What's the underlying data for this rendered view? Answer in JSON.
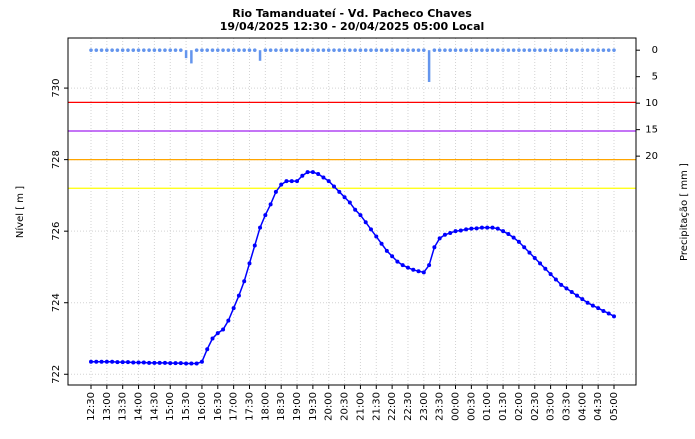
{
  "chart_data": {
    "type": "line",
    "title": "Rio Tamanduateí - Vd. Pacheco Chaves",
    "subtitle": "19/04/2025 12:30  -  20/04/2025 05:00  Local",
    "y_label": "Nível [ m ]",
    "y2_label": "Precipitação [ mm ]",
    "categories": [
      "12:30",
      null,
      null,
      "13:00",
      null,
      null,
      "13:30",
      null,
      null,
      "14:00",
      null,
      null,
      "14:30",
      null,
      null,
      "15:00",
      null,
      null,
      "15:30",
      null,
      null,
      "16:00",
      null,
      null,
      "16:30",
      null,
      null,
      "17:00",
      null,
      null,
      "17:30",
      null,
      null,
      "18:00",
      null,
      null,
      "18:30",
      null,
      null,
      "19:00",
      null,
      null,
      "19:30",
      null,
      null,
      "20:00",
      null,
      null,
      "20:30",
      null,
      null,
      "21:00",
      null,
      null,
      "21:30",
      null,
      null,
      "22:00",
      null,
      null,
      "22:30",
      null,
      null,
      "23:00",
      null,
      null,
      "23:30",
      null,
      null,
      "00:00",
      null,
      null,
      "00:30",
      null,
      null,
      "01:00",
      null,
      null,
      "01:30",
      null,
      null,
      "02:00",
      null,
      null,
      "02:30",
      null,
      null,
      "03:00",
      null,
      null,
      "03:30",
      null,
      null,
      "04:00",
      null,
      null,
      "04:30",
      null,
      null,
      "05:00"
    ],
    "series": [
      {
        "name": "Nível",
        "color": "#0000ff",
        "values": [
          722.35,
          722.35,
          722.35,
          722.35,
          722.35,
          722.34,
          722.34,
          722.34,
          722.33,
          722.33,
          722.33,
          722.32,
          722.32,
          722.32,
          722.32,
          722.31,
          722.31,
          722.31,
          722.3,
          722.3,
          722.3,
          722.35,
          722.7,
          723.0,
          723.15,
          723.25,
          723.5,
          723.85,
          724.2,
          724.6,
          725.1,
          725.6,
          726.1,
          726.45,
          726.75,
          727.1,
          727.3,
          727.4,
          727.4,
          727.4,
          727.55,
          727.65,
          727.65,
          727.6,
          727.5,
          727.4,
          727.25,
          727.1,
          726.95,
          726.8,
          726.6,
          726.45,
          726.25,
          726.05,
          725.85,
          725.65,
          725.45,
          725.3,
          725.15,
          725.05,
          724.98,
          724.92,
          724.88,
          724.85,
          725.05,
          725.55,
          725.8,
          725.9,
          725.95,
          726.0,
          726.02,
          726.05,
          726.07,
          726.08,
          726.1,
          726.1,
          726.1,
          726.07,
          726.0,
          725.92,
          725.82,
          725.7,
          725.55,
          725.4,
          725.25,
          725.1,
          724.95,
          724.8,
          724.65,
          724.5,
          724.4,
          724.3,
          724.2,
          724.1,
          724.0,
          723.92,
          723.85,
          723.77,
          723.7,
          723.62
        ]
      },
      {
        "name": "Precipitação",
        "color": "#6495ed",
        "axis": "y2",
        "values": [
          0,
          0,
          0,
          0,
          0,
          0,
          0,
          0,
          0,
          0,
          0,
          0,
          0,
          0,
          0,
          0,
          0,
          0,
          1.5,
          2.5,
          0,
          0,
          0,
          0,
          0,
          0,
          0,
          0,
          0,
          0,
          0,
          0,
          2,
          0,
          0,
          0,
          0,
          0,
          0,
          0,
          0,
          0,
          0,
          0,
          0,
          0,
          0,
          0,
          0,
          0,
          0,
          0,
          0,
          0,
          0,
          0,
          0,
          0,
          0,
          0,
          0,
          0,
          0,
          0,
          6,
          0,
          0,
          0,
          0,
          0,
          0,
          0,
          0,
          0,
          0,
          0,
          0,
          0,
          0,
          0,
          0,
          0,
          0,
          0,
          0,
          0,
          0,
          0,
          0,
          0,
          0,
          0,
          0,
          0,
          0,
          0,
          0,
          0,
          0,
          0
        ]
      }
    ],
    "thresholds": [
      {
        "value": 729.6,
        "color": "#ff0000"
      },
      {
        "value": 728.8,
        "color": "#a020f0"
      },
      {
        "value": 728,
        "color": "#ffa500"
      },
      {
        "value": 727.2,
        "color": "#ffff00"
      }
    ],
    "ylim": [
      721.7,
      731.4
    ],
    "yticks": [
      722,
      724,
      726,
      728,
      730
    ],
    "y2lim": [
      63.2,
      -2.3
    ],
    "y2ticks": [
      0,
      5,
      10,
      15,
      20
    ],
    "grid": true
  }
}
